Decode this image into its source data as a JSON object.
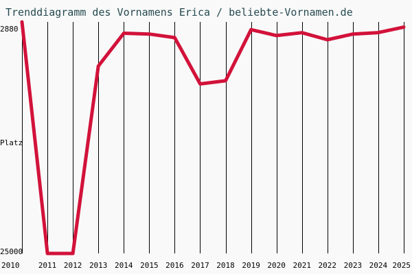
{
  "chart_data": {
    "type": "line",
    "title": "Trenddiagramm des Vornamens Erica / beliebte-Vornamen.de",
    "ylabel": "Platz",
    "y_top_label": "2880",
    "y_bottom_label": "25000",
    "ylim": [
      25000,
      2880
    ],
    "x": [
      "2010",
      "2011",
      "2012",
      "2013",
      "2014",
      "2015",
      "2016",
      "2017",
      "2018",
      "2019",
      "2020",
      "2021",
      "2022",
      "2023",
      "2024",
      "2025"
    ],
    "series": [
      {
        "values": [
          2880,
          25000,
          25000,
          7100,
          3960,
          4040,
          4380,
          8800,
          8500,
          3620,
          4180,
          3910,
          4580,
          4040,
          3900,
          3380
        ]
      }
    ],
    "grid": true,
    "colors": {
      "line": "#d2123a",
      "grid": "#000000",
      "title": "#25494f",
      "background": "#f9f9f9"
    }
  }
}
